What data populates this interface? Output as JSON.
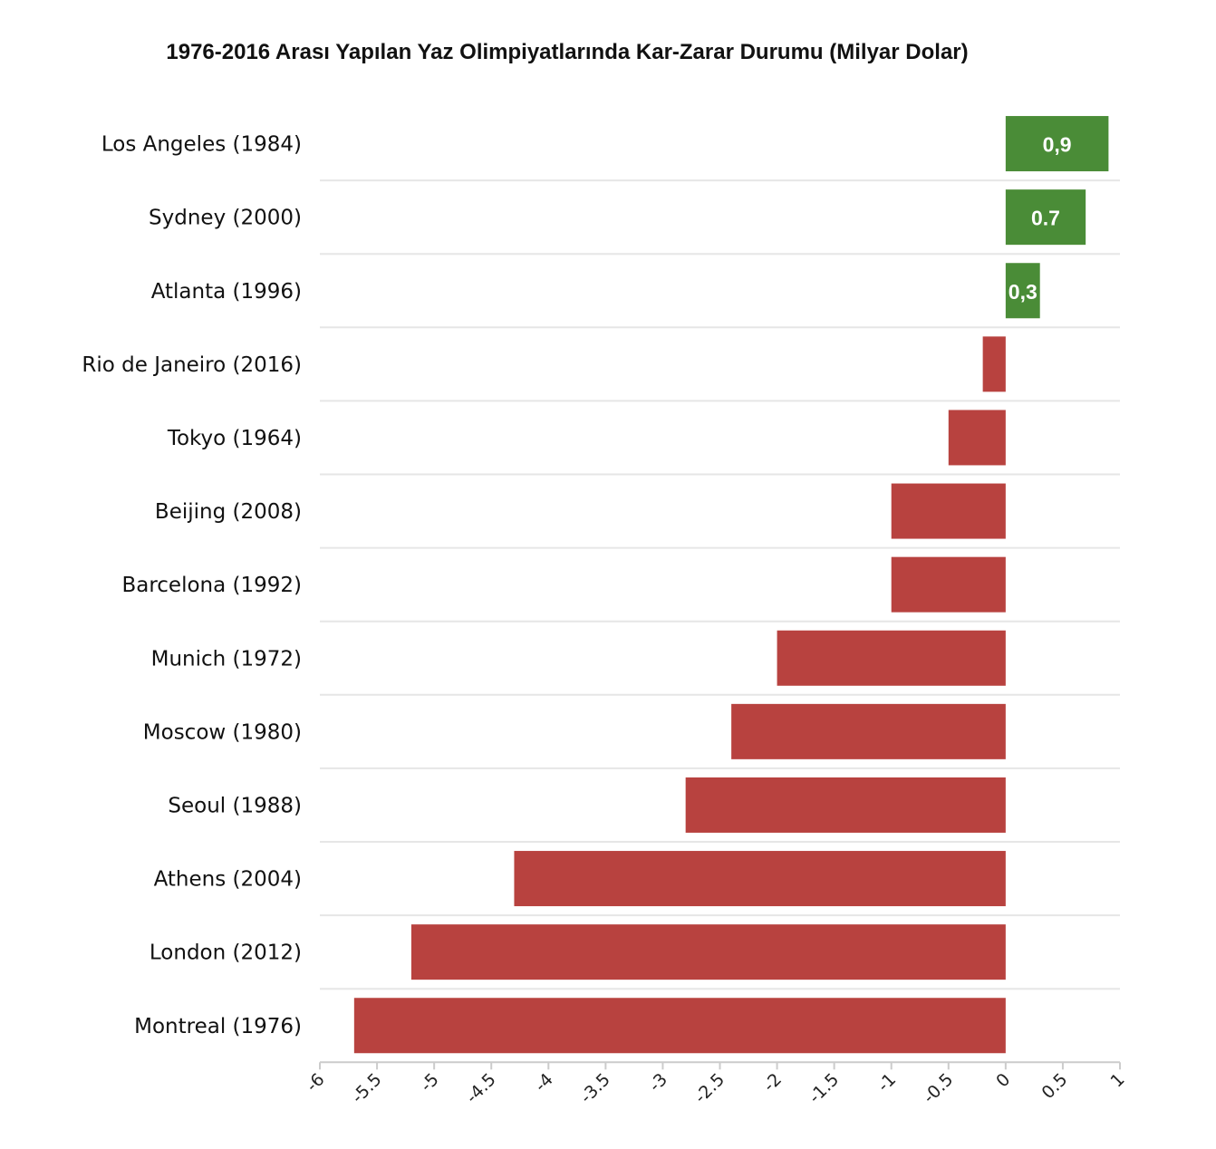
{
  "chart_data": {
    "type": "bar",
    "orientation": "horizontal",
    "title": "1976-2016 Arası Yapılan Yaz Olimpiyatlarında Kar-Zarar Durumu (Milyar Dolar)",
    "xlabel": "",
    "ylabel": "",
    "categories": [
      "Los Angeles (1984)",
      "Sydney (2000)",
      "Atlanta (1996)",
      "Rio de Janeiro (2016)",
      "Tokyo (1964)",
      "Beijing (2008)",
      "Barcelona (1992)",
      "Munich (1972)",
      "Moscow (1980)",
      "Seoul (1988)",
      "Athens (2004)",
      "London (2012)",
      "Montreal (1976)"
    ],
    "values": [
      0.9,
      0.7,
      0.3,
      -0.2,
      -0.5,
      -1.0,
      -1.0,
      -2.0,
      -2.4,
      -2.8,
      -4.3,
      -5.2,
      -5.7
    ],
    "data_labels": [
      "0,9",
      "0.7",
      "0,3",
      "",
      "",
      "",
      "",
      "",
      "",
      "",
      "",
      "",
      ""
    ],
    "xlim": [
      -6,
      1
    ],
    "x_ticks": [
      "-6",
      "-5.5",
      "-5",
      "-4.5",
      "-4",
      "-3.5",
      "-3",
      "-2.5",
      "-2",
      "-1.5",
      "-1",
      "-0.5",
      "0",
      "0.5",
      "1"
    ],
    "x_tick_values": [
      -6,
      -5.5,
      -5,
      -4.5,
      -4,
      -3.5,
      -3,
      -2.5,
      -2,
      -1.5,
      -1,
      -0.5,
      0,
      0.5,
      1
    ],
    "grid": "horizontal separators",
    "legend": "none",
    "colors": {
      "positive": "#4a8c37",
      "negative": "#b8423f",
      "grid": "#e6e6e6",
      "axis": "#cccccc"
    }
  }
}
